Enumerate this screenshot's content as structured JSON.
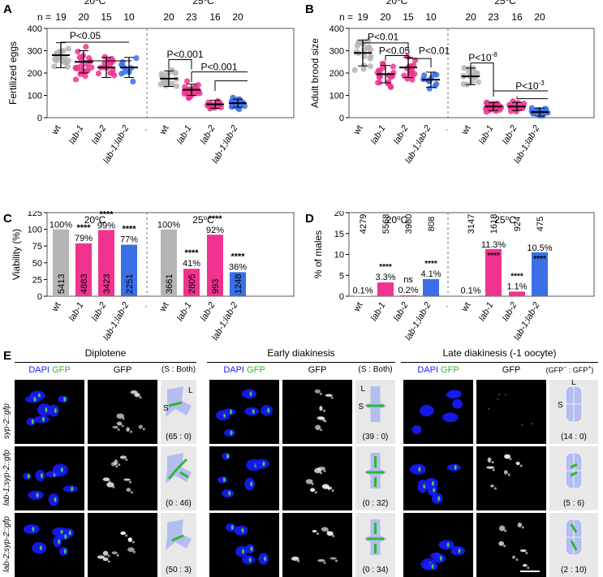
{
  "panel_letters": [
    "A",
    "B",
    "C",
    "D",
    "E"
  ],
  "temps": {
    "t20": "20",
    "t25": "25",
    "unit": "C",
    "deg": "o"
  },
  "n_label": "n =",
  "n_values": [
    "19",
    "20",
    "15",
    "10",
    "20",
    "23",
    "16",
    "20"
  ],
  "genotypes": [
    "wt",
    "lab-1",
    "lab-2",
    "lab-1;lab-2"
  ],
  "colors": {
    "wt": "#b5b5b5",
    "lab1": "#f0338f",
    "lab2": "#f0338f",
    "lab12": "#3a6fe6",
    "dapi": "#2020ff",
    "gfp": "#2eb82e",
    "schem": "#b4bdf0",
    "bg_schem": "#e8e8e8"
  },
  "chart_data": [
    {
      "panel": "A",
      "type": "scatter",
      "ylabel": "Fertilized eggs",
      "ylim": [
        0,
        400
      ],
      "yticks": [
        "0",
        "100",
        "200",
        "300",
        "400"
      ],
      "groups": [
        {
          "temp": "20",
          "genotype": "wt",
          "n": 19,
          "mean": 280
        },
        {
          "temp": "20",
          "genotype": "lab-1",
          "n": 20,
          "mean": 250
        },
        {
          "temp": "20",
          "genotype": "lab-2",
          "n": 15,
          "mean": 225
        },
        {
          "temp": "20",
          "genotype": "lab-1;lab-2",
          "n": 10,
          "mean": 225
        },
        {
          "temp": "25",
          "genotype": "wt",
          "n": 20,
          "mean": 175
        },
        {
          "temp": "25",
          "genotype": "lab-1",
          "n": 23,
          "mean": 125
        },
        {
          "temp": "25",
          "genotype": "lab-2",
          "n": 16,
          "mean": 60
        },
        {
          "temp": "25",
          "genotype": "lab-1;lab-2",
          "n": 20,
          "mean": 65
        }
      ],
      "annotations": [
        "P<0.05",
        "P<0.001",
        "P<0.001"
      ]
    },
    {
      "panel": "B",
      "type": "scatter",
      "ylabel": "Adult brood size",
      "ylim": [
        0,
        400
      ],
      "yticks": [
        "0",
        "100",
        "200",
        "300",
        "400"
      ],
      "groups": [
        {
          "temp": "20",
          "genotype": "wt",
          "n": 19,
          "mean": 290
        },
        {
          "temp": "20",
          "genotype": "lab-1",
          "n": 20,
          "mean": 195
        },
        {
          "temp": "20",
          "genotype": "lab-2",
          "n": 15,
          "mean": 225
        },
        {
          "temp": "20",
          "genotype": "lab-1;lab-2",
          "n": 10,
          "mean": 170
        },
        {
          "temp": "25",
          "genotype": "wt",
          "n": 20,
          "mean": 185
        },
        {
          "temp": "25",
          "genotype": "lab-1",
          "n": 23,
          "mean": 50
        },
        {
          "temp": "25",
          "genotype": "lab-2",
          "n": 16,
          "mean": 50
        },
        {
          "temp": "25",
          "genotype": "lab-1;lab-2",
          "n": 20,
          "mean": 25
        }
      ],
      "annotations": [
        "P<0.01",
        "P<0.05",
        "P<0.01",
        "P<10",
        "-8",
        "P<10",
        "-3"
      ]
    },
    {
      "panel": "C",
      "type": "bar",
      "ylabel": "Viability (%)",
      "ylim": [
        0,
        125
      ],
      "yticks": [
        "0",
        "25",
        "50",
        "75",
        "100",
        "125"
      ],
      "values": [
        100,
        79,
        99,
        77,
        100,
        41,
        92,
        36
      ],
      "value_labels": [
        "100%",
        "79%",
        "99%",
        "77%",
        "100%",
        "41%",
        "92%",
        "36%"
      ],
      "counts": [
        "5413",
        "4883",
        "3423",
        "2251",
        "3661",
        "2805",
        "993",
        "1248"
      ],
      "stars": [
        "",
        "****",
        "****",
        "****",
        "",
        "****",
        "****",
        "****"
      ]
    },
    {
      "panel": "D",
      "type": "bar",
      "ylabel": "% of males",
      "ylim": [
        0,
        20
      ],
      "yticks": [
        "0",
        "5",
        "10",
        "15",
        "20"
      ],
      "values": [
        0.1,
        3.3,
        0.2,
        4.1,
        0.1,
        11.3,
        1.1,
        10.5
      ],
      "value_labels": [
        "0.1%",
        "3.3%",
        "0.2%",
        "4.1%",
        "0.1%",
        "11.3%",
        "1.1%",
        "10.5%"
      ],
      "counts": [
        "4279",
        "5568",
        "3980",
        "808",
        "3147",
        "1618",
        "924",
        "475"
      ],
      "stars": [
        "",
        "****",
        "ns",
        "****",
        "",
        "****",
        "****",
        "****"
      ]
    }
  ],
  "panelE": {
    "stages": [
      "Diplotene",
      "Early diakinesis",
      "Late diakinesis (-1 oocyte)"
    ],
    "dapi": "DAPI",
    "gfp": "GFP",
    "ratio_headers": [
      "(S : Both)",
      "(S : Both)"
    ],
    "gfp_ratio_header": {
      "open": "(GFP",
      "minus": "−",
      "sep": " : GFP",
      "plus": "+",
      "close": ")"
    },
    "rows": [
      {
        "label": "syp-2::gfp",
        "ratios": [
          "(65 : 0)",
          "(39 : 0)",
          "(14 : 0)"
        ]
      },
      {
        "label": "lab-1;syp-2::gfp",
        "ratios": [
          "(0 : 46)",
          "(0 : 32)",
          "(5 : 6)"
        ]
      },
      {
        "label": "lab-2;syp-2::gfp",
        "ratios": [
          "(50 : 3)",
          "(0 : 34)",
          "(2 : 10)"
        ]
      }
    ],
    "axis_letters": {
      "L": "L",
      "S": "S"
    }
  }
}
